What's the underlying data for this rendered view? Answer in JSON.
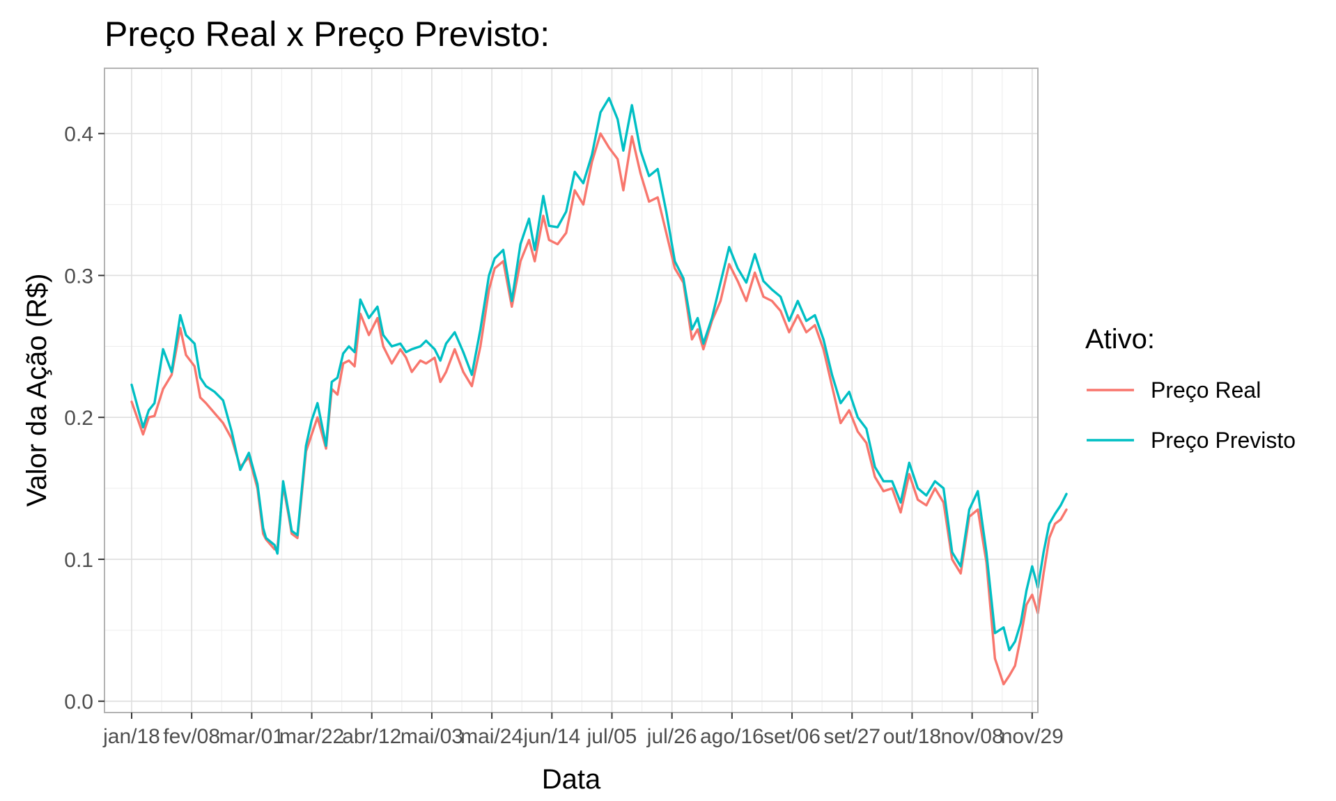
{
  "chart_data": {
    "type": "line",
    "title": "Preço Real x Preço Previsto:",
    "xlabel": "Data",
    "ylabel": "Valor da Ação (R$)",
    "ylim": [
      -0.008,
      0.446
    ],
    "y_ticks": [
      0.0,
      0.1,
      0.2,
      0.3,
      0.4
    ],
    "y_tick_labels": [
      "0.0",
      "0.1",
      "0.2",
      "0.3",
      "0.4"
    ],
    "x_tick_labels": [
      "jan/18",
      "fev/08",
      "mar/01",
      "mar/22",
      "abr/12",
      "mai/03",
      "mai/24",
      "jun/14",
      "jul/05",
      "jul/26",
      "ago/16",
      "set/06",
      "set/27",
      "out/18",
      "nov/08",
      "nov/29"
    ],
    "x": [
      0,
      4,
      6,
      8,
      11,
      14,
      17,
      19,
      22,
      24,
      26,
      29,
      32,
      35,
      38,
      41,
      44,
      46,
      47,
      50,
      51,
      53,
      55,
      56,
      58,
      61,
      63,
      65,
      68,
      70,
      72,
      74,
      76,
      78,
      80,
      83,
      86,
      88,
      91,
      94,
      96,
      98,
      101,
      103,
      106,
      108,
      110,
      113,
      116,
      119,
      122,
      125,
      127,
      130,
      133,
      136,
      139,
      141,
      144,
      146,
      149,
      152,
      155,
      158,
      161,
      164,
      167,
      170,
      172,
      175,
      178,
      181,
      184,
      187,
      190,
      193,
      196,
      198,
      200,
      203,
      206,
      209,
      212,
      215,
      218,
      221,
      224,
      227,
      230,
      233,
      236,
      239,
      242,
      245,
      248,
      251,
      254,
      257,
      260,
      263,
      266,
      269,
      272,
      275,
      278,
      281,
      284,
      287,
      290,
      293,
      296,
      299,
      302,
      305
    ],
    "x_tick_values": [
      0,
      21,
      42,
      63,
      84,
      105,
      126,
      147,
      168,
      189,
      210,
      231,
      252,
      273,
      294,
      315
    ],
    "x_range": [
      -9.5,
      317
    ],
    "grid": true,
    "legend_title": "Ativo:",
    "legend_position": "right",
    "series": [
      {
        "name": "Preço Real",
        "color": "#F8766D",
        "values": [
          0.211,
          0.188,
          0.2,
          0.201,
          0.22,
          0.23,
          0.263,
          0.244,
          0.236,
          0.214,
          0.21,
          0.203,
          0.196,
          0.185,
          0.165,
          0.172,
          0.15,
          0.118,
          0.114,
          0.107,
          0.108,
          0.152,
          0.13,
          0.118,
          0.115,
          0.176,
          0.188,
          0.2,
          0.178,
          0.22,
          0.216,
          0.238,
          0.24,
          0.236,
          0.273,
          0.258,
          0.27,
          0.25,
          0.238,
          0.248,
          0.242,
          0.232,
          0.24,
          0.238,
          0.242,
          0.225,
          0.232,
          0.248,
          0.232,
          0.222,
          0.25,
          0.29,
          0.305,
          0.31,
          0.278,
          0.31,
          0.325,
          0.31,
          0.342,
          0.325,
          0.322,
          0.33,
          0.36,
          0.35,
          0.38,
          0.4,
          0.39,
          0.382,
          0.36,
          0.398,
          0.372,
          0.352,
          0.355,
          0.33,
          0.305,
          0.295,
          0.255,
          0.262,
          0.248,
          0.268,
          0.282,
          0.308,
          0.296,
          0.282,
          0.302,
          0.285,
          0.282,
          0.275,
          0.26,
          0.272,
          0.26,
          0.265,
          0.248,
          0.222,
          0.196,
          0.205,
          0.19,
          0.182,
          0.158,
          0.148,
          0.15,
          0.133,
          0.16,
          0.142,
          0.138,
          0.15,
          0.14,
          0.1,
          0.09,
          0.13,
          0.135,
          0.098,
          0.03,
          0.012
        ],
        "values_tail": [
          0.018,
          0.025,
          0.045,
          0.068,
          0.075,
          0.062,
          0.09,
          0.115,
          0.125,
          0.128,
          0.135
        ]
      },
      {
        "name": "Preço Previsto",
        "color": "#00BFC4",
        "values": [
          0.223,
          0.193,
          0.205,
          0.21,
          0.248,
          0.232,
          0.272,
          0.258,
          0.252,
          0.228,
          0.222,
          0.218,
          0.212,
          0.19,
          0.163,
          0.175,
          0.153,
          0.122,
          0.115,
          0.11,
          0.104,
          0.155,
          0.132,
          0.12,
          0.117,
          0.18,
          0.198,
          0.21,
          0.18,
          0.225,
          0.228,
          0.245,
          0.25,
          0.246,
          0.283,
          0.27,
          0.278,
          0.258,
          0.25,
          0.252,
          0.246,
          0.248,
          0.25,
          0.254,
          0.248,
          0.24,
          0.252,
          0.26,
          0.246,
          0.23,
          0.262,
          0.3,
          0.312,
          0.318,
          0.282,
          0.322,
          0.34,
          0.318,
          0.356,
          0.335,
          0.334,
          0.345,
          0.373,
          0.365,
          0.385,
          0.415,
          0.425,
          0.41,
          0.388,
          0.42,
          0.388,
          0.37,
          0.375,
          0.345,
          0.31,
          0.298,
          0.262,
          0.27,
          0.252,
          0.27,
          0.295,
          0.32,
          0.305,
          0.295,
          0.315,
          0.296,
          0.29,
          0.285,
          0.268,
          0.282,
          0.268,
          0.272,
          0.255,
          0.23,
          0.21,
          0.218,
          0.2,
          0.192,
          0.165,
          0.155,
          0.155,
          0.14,
          0.168,
          0.15,
          0.145,
          0.155,
          0.15,
          0.105,
          0.095,
          0.135,
          0.148,
          0.105,
          0.048,
          0.052
        ],
        "values_tail": [
          0.036,
          0.042,
          0.055,
          0.078,
          0.095,
          0.08,
          0.105,
          0.125,
          0.132,
          0.138,
          0.146
        ]
      }
    ]
  }
}
